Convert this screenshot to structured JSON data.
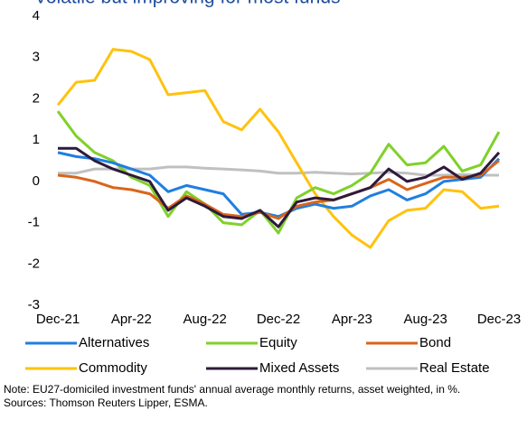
{
  "chart_data": {
    "type": "line",
    "title": "Volatile but improving for most funds",
    "categories": [
      "Dec-21",
      null,
      null,
      null,
      "Apr-22",
      null,
      null,
      null,
      "Aug-22",
      null,
      null,
      null,
      "Dec-22",
      null,
      null,
      null,
      "Apr-23",
      null,
      null,
      null,
      "Aug-23",
      null,
      null,
      null,
      "Dec-23"
    ],
    "series": [
      {
        "name": "Alternatives",
        "color": "#1f7fe0",
        "values": [
          0.7,
          0.6,
          0.55,
          0.45,
          0.3,
          0.15,
          -0.25,
          -0.1,
          -0.2,
          -0.3,
          -0.8,
          -0.75,
          -0.85,
          -0.65,
          -0.55,
          -0.65,
          -0.6,
          -0.35,
          -0.2,
          -0.45,
          -0.3,
          0,
          0.05,
          0.1,
          0.55
        ]
      },
      {
        "name": "Equity",
        "color": "#7fd12a",
        "values": [
          1.7,
          1.1,
          0.7,
          0.5,
          0.1,
          -0.1,
          -0.85,
          -0.25,
          -0.55,
          -1.0,
          -1.05,
          -0.7,
          -1.25,
          -0.4,
          -0.15,
          -0.3,
          -0.1,
          0.2,
          0.9,
          0.4,
          0.45,
          0.85,
          0.25,
          0.4,
          1.2
        ]
      },
      {
        "name": "Bond",
        "color": "#d9651b",
        "values": [
          0.15,
          0.1,
          0,
          -0.15,
          -0.2,
          -0.3,
          -0.65,
          -0.35,
          -0.55,
          -0.8,
          -0.85,
          -0.75,
          -0.9,
          -0.6,
          -0.5,
          -0.45,
          -0.3,
          -0.15,
          0.05,
          -0.2,
          -0.05,
          0.1,
          0.1,
          0.15,
          0.5
        ]
      },
      {
        "name": "Commodity",
        "color": "#ffc20e",
        "values": [
          1.85,
          2.4,
          2.45,
          3.2,
          3.15,
          2.95,
          2.1,
          2.15,
          2.2,
          1.45,
          1.25,
          1.75,
          1.2,
          0.45,
          -0.3,
          -0.85,
          -1.3,
          -1.6,
          -0.95,
          -0.7,
          -0.65,
          -0.2,
          -0.25,
          -0.65,
          -0.6
        ]
      },
      {
        "name": "Mixed Assets",
        "color": "#2e1a3c",
        "values": [
          0.8,
          0.8,
          0.5,
          0.3,
          0.15,
          0,
          -0.7,
          -0.4,
          -0.6,
          -0.85,
          -0.9,
          -0.7,
          -1.1,
          -0.5,
          -0.4,
          -0.45,
          -0.3,
          -0.15,
          0.3,
          0,
          0.1,
          0.35,
          0.05,
          0.2,
          0.7
        ]
      },
      {
        "name": "Real Estate",
        "color": "#c0c0c0",
        "values": [
          0.2,
          0.2,
          0.3,
          0.3,
          0.3,
          0.3,
          0.35,
          0.35,
          0.32,
          0.3,
          0.28,
          0.25,
          0.2,
          0.2,
          0.22,
          0.2,
          0.18,
          0.2,
          0.22,
          0.2,
          0.15,
          0.15,
          0.17,
          0.15,
          0.15
        ]
      }
    ],
    "ylim": [
      -3,
      4
    ],
    "yticks": [
      -3,
      -2,
      -1,
      0,
      1,
      2,
      3,
      4
    ],
    "grid": false,
    "legend": "bottom",
    "note": "Note: EU27-domiciled investment funds'  annual average monthly returns, asset weighted, in %.",
    "source": "Sources: Thomson Reuters Lipper, ESMA."
  }
}
